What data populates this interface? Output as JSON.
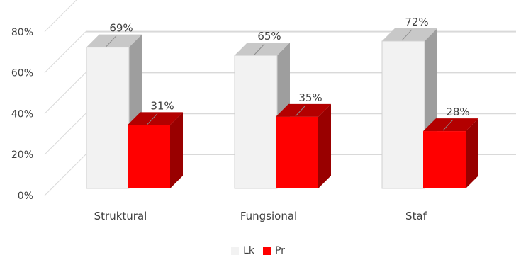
{
  "chart_data": {
    "type": "bar",
    "categories": [
      "Struktural",
      "Fungsional",
      "Staf"
    ],
    "series": [
      {
        "name": "Lk",
        "values": [
          69,
          65,
          72
        ],
        "labels": [
          "69%",
          "65%",
          "72%"
        ],
        "color": "#f2f2f2"
      },
      {
        "name": "Pr",
        "values": [
          31,
          35,
          28
        ],
        "labels": [
          "31%",
          "35%",
          "28%"
        ],
        "color": "#ff0000"
      }
    ],
    "y_ticks": [
      "0%",
      "20%",
      "40%",
      "60%",
      "80%"
    ],
    "ylim": [
      0,
      80
    ],
    "grid": true,
    "legend": "bottom"
  }
}
